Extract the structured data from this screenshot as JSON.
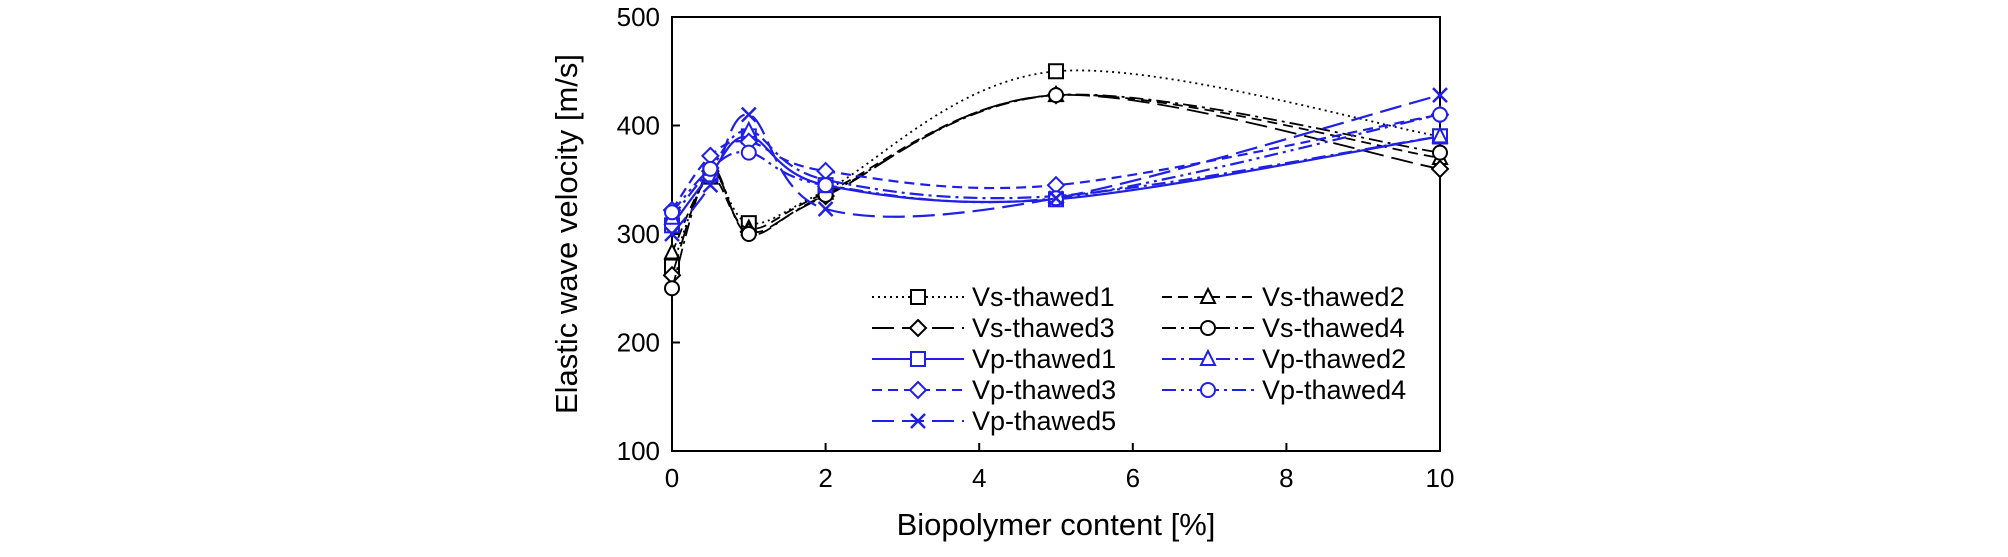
{
  "chart_data": {
    "type": "line",
    "title": "",
    "xlabel": "Biopolymer content [%]",
    "ylabel": "Elastic wave velocity [m/s]",
    "xlim": [
      0,
      10
    ],
    "ylim": [
      100,
      500
    ],
    "xticks": [
      0,
      2,
      4,
      6,
      8,
      10
    ],
    "yticks": [
      100,
      200,
      300,
      400,
      500
    ],
    "grid": false,
    "legend_position": "lower-right inside",
    "x": [
      0,
      0.5,
      1,
      2,
      5,
      10
    ],
    "series": [
      {
        "name": "Vs-thawed1",
        "color": "#000000",
        "marker": "square",
        "dash": "dotted",
        "values": [
          270,
          355,
          310,
          340,
          450,
          390
        ]
      },
      {
        "name": "Vs-thawed2",
        "color": "#000000",
        "marker": "triangle",
        "dash": "dashed",
        "values": [
          283,
          352,
          305,
          338,
          428,
          370
        ]
      },
      {
        "name": "Vs-thawed3",
        "color": "#000000",
        "marker": "diamond",
        "dash": "longdash",
        "values": [
          262,
          358,
          302,
          335,
          428,
          360
        ]
      },
      {
        "name": "Vs-thawed4",
        "color": "#000000",
        "marker": "circle",
        "dash": "dashdot",
        "values": [
          250,
          360,
          300,
          336,
          428,
          375
        ]
      },
      {
        "name": "Vp-thawed1",
        "color": "#1f1fe6",
        "marker": "square",
        "dash": "solid",
        "values": [
          308,
          355,
          390,
          345,
          332,
          390
        ]
      },
      {
        "name": "Vp-thawed2",
        "color": "#1f1fe6",
        "marker": "triangle",
        "dash": "dashdot",
        "values": [
          315,
          360,
          395,
          350,
          335,
          390
        ]
      },
      {
        "name": "Vp-thawed3",
        "color": "#1f1fe6",
        "marker": "diamond",
        "dash": "dashed",
        "values": [
          322,
          372,
          385,
          358,
          345,
          410
        ]
      },
      {
        "name": "Vp-thawed4",
        "color": "#1f1fe6",
        "marker": "circle",
        "dash": "dashdotdot",
        "values": [
          320,
          360,
          375,
          345,
          333,
          410
        ]
      },
      {
        "name": "Vp-thawed5",
        "color": "#1f1fe6",
        "marker": "x",
        "dash": "longdash",
        "values": [
          300,
          345,
          410,
          323,
          333,
          428
        ]
      }
    ]
  }
}
